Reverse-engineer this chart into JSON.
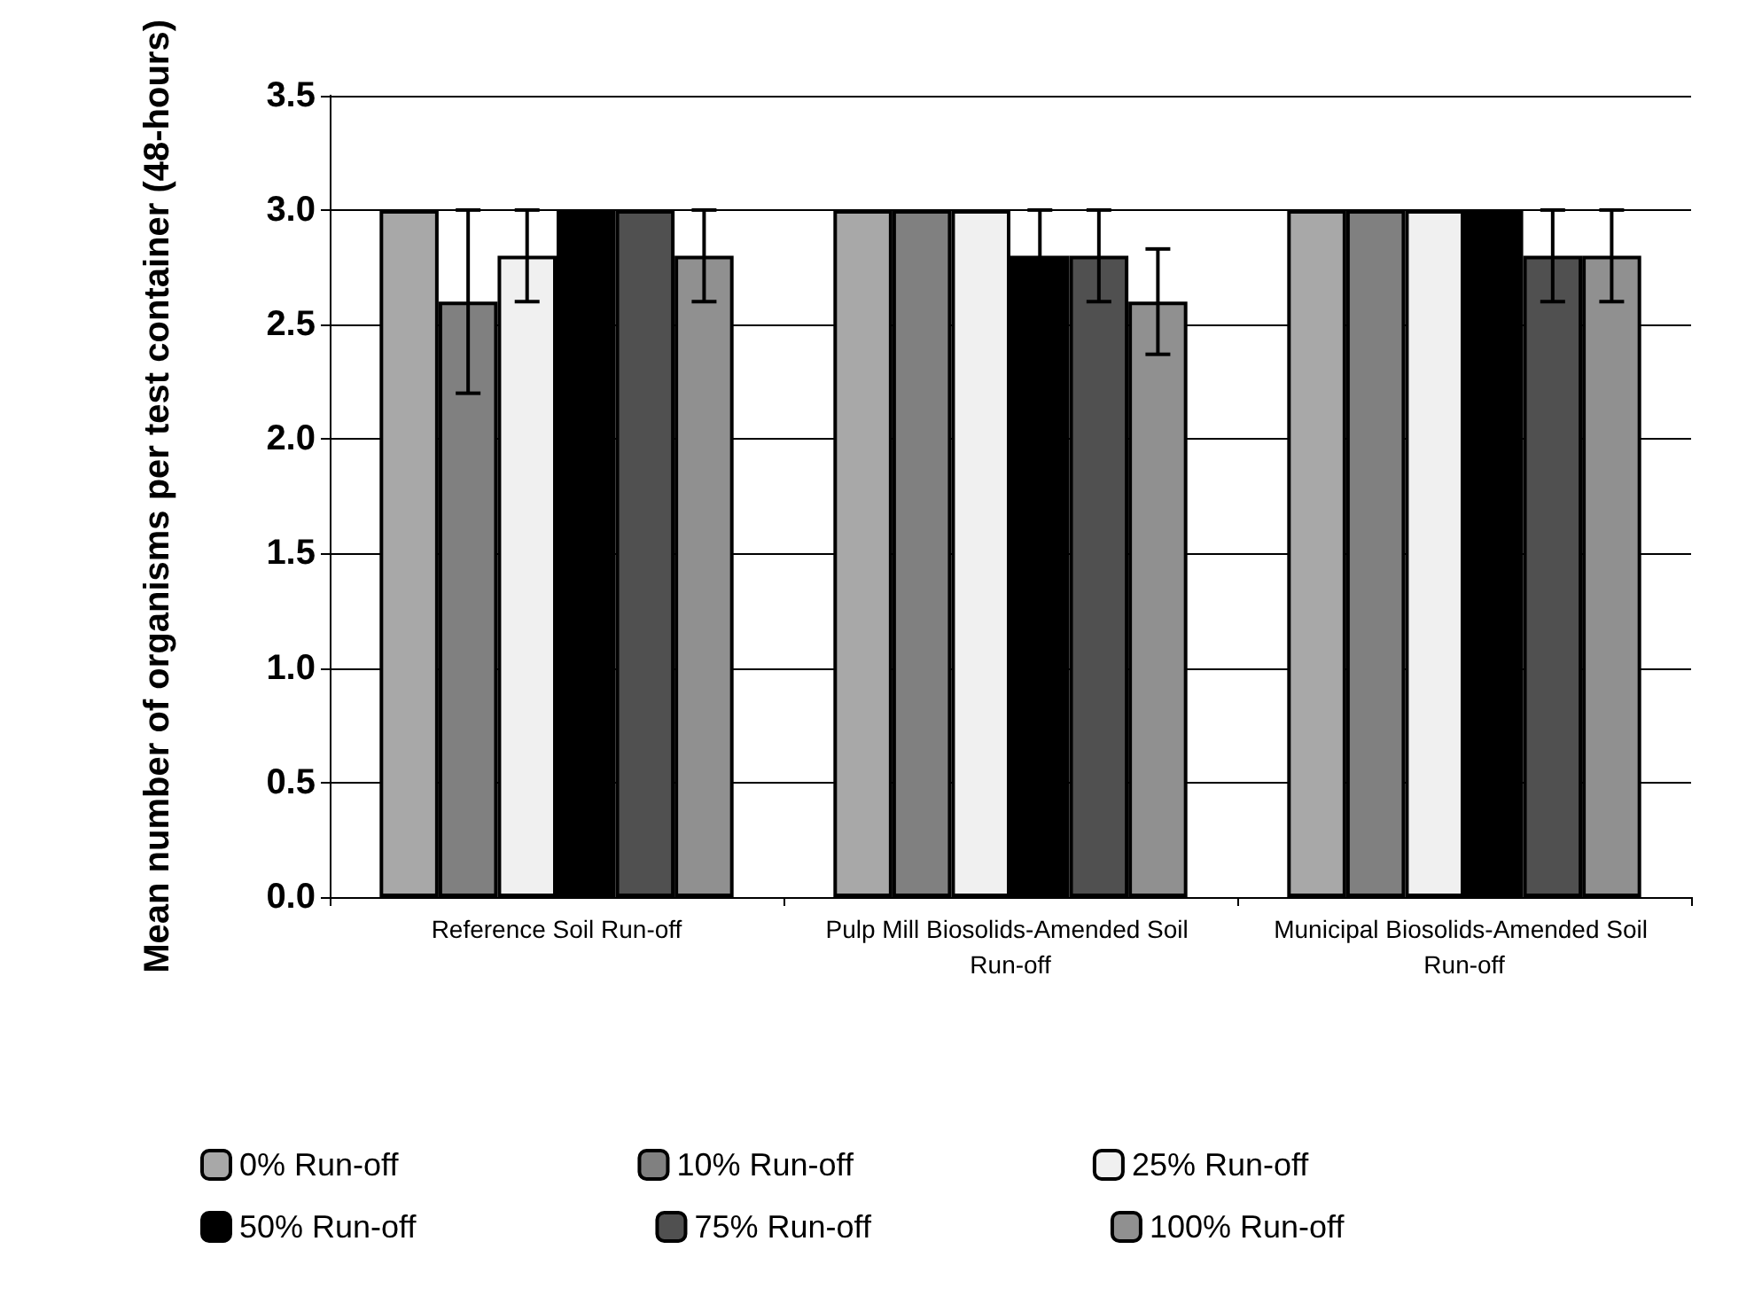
{
  "chart_data": {
    "type": "bar",
    "ylabel": "Mean number of organisms per test container (48-hours)",
    "categories": [
      "Reference Soil Run-off",
      "Pulp Mill Biosolids-Amended Soil Run-off",
      "Municipal Biosolids-Amended Soil Run-off"
    ],
    "series": [
      {
        "name": "0% Run-off",
        "color": "#a8a8a8",
        "values": [
          3.0,
          3.0,
          3.0
        ],
        "errors": [
          null,
          null,
          null
        ]
      },
      {
        "name": "10% Run-off",
        "color": "#808080",
        "values": [
          2.6,
          3.0,
          3.0
        ],
        "errors": [
          0.4,
          null,
          null
        ]
      },
      {
        "name": "25% Run-off",
        "color": "#f0f0f0",
        "values": [
          2.8,
          3.0,
          3.0
        ],
        "errors": [
          0.2,
          null,
          null
        ]
      },
      {
        "name": "50% Run-off",
        "color": "#000000",
        "values": [
          3.0,
          2.8,
          3.0
        ],
        "errors": [
          null,
          0.2,
          null
        ]
      },
      {
        "name": "75% Run-off",
        "color": "#505050",
        "values": [
          3.0,
          2.8,
          2.8
        ],
        "errors": [
          null,
          0.2,
          0.2
        ]
      },
      {
        "name": "100% Run-off",
        "color": "#909090",
        "values": [
          2.8,
          2.6,
          2.8
        ],
        "errors": [
          0.2,
          0.23,
          0.2
        ]
      }
    ],
    "ylim": [
      0,
      3.5
    ],
    "yticks": [
      {
        "value": 0,
        "label": "0.0"
      },
      0.5,
      {
        "value": 1,
        "label": "1.0"
      },
      1.5,
      {
        "value": 2,
        "label": "2.0"
      },
      2.5,
      {
        "value": 3,
        "label": "3.0"
      },
      3.5
    ],
    "grid": "y",
    "legend": "bottom"
  }
}
